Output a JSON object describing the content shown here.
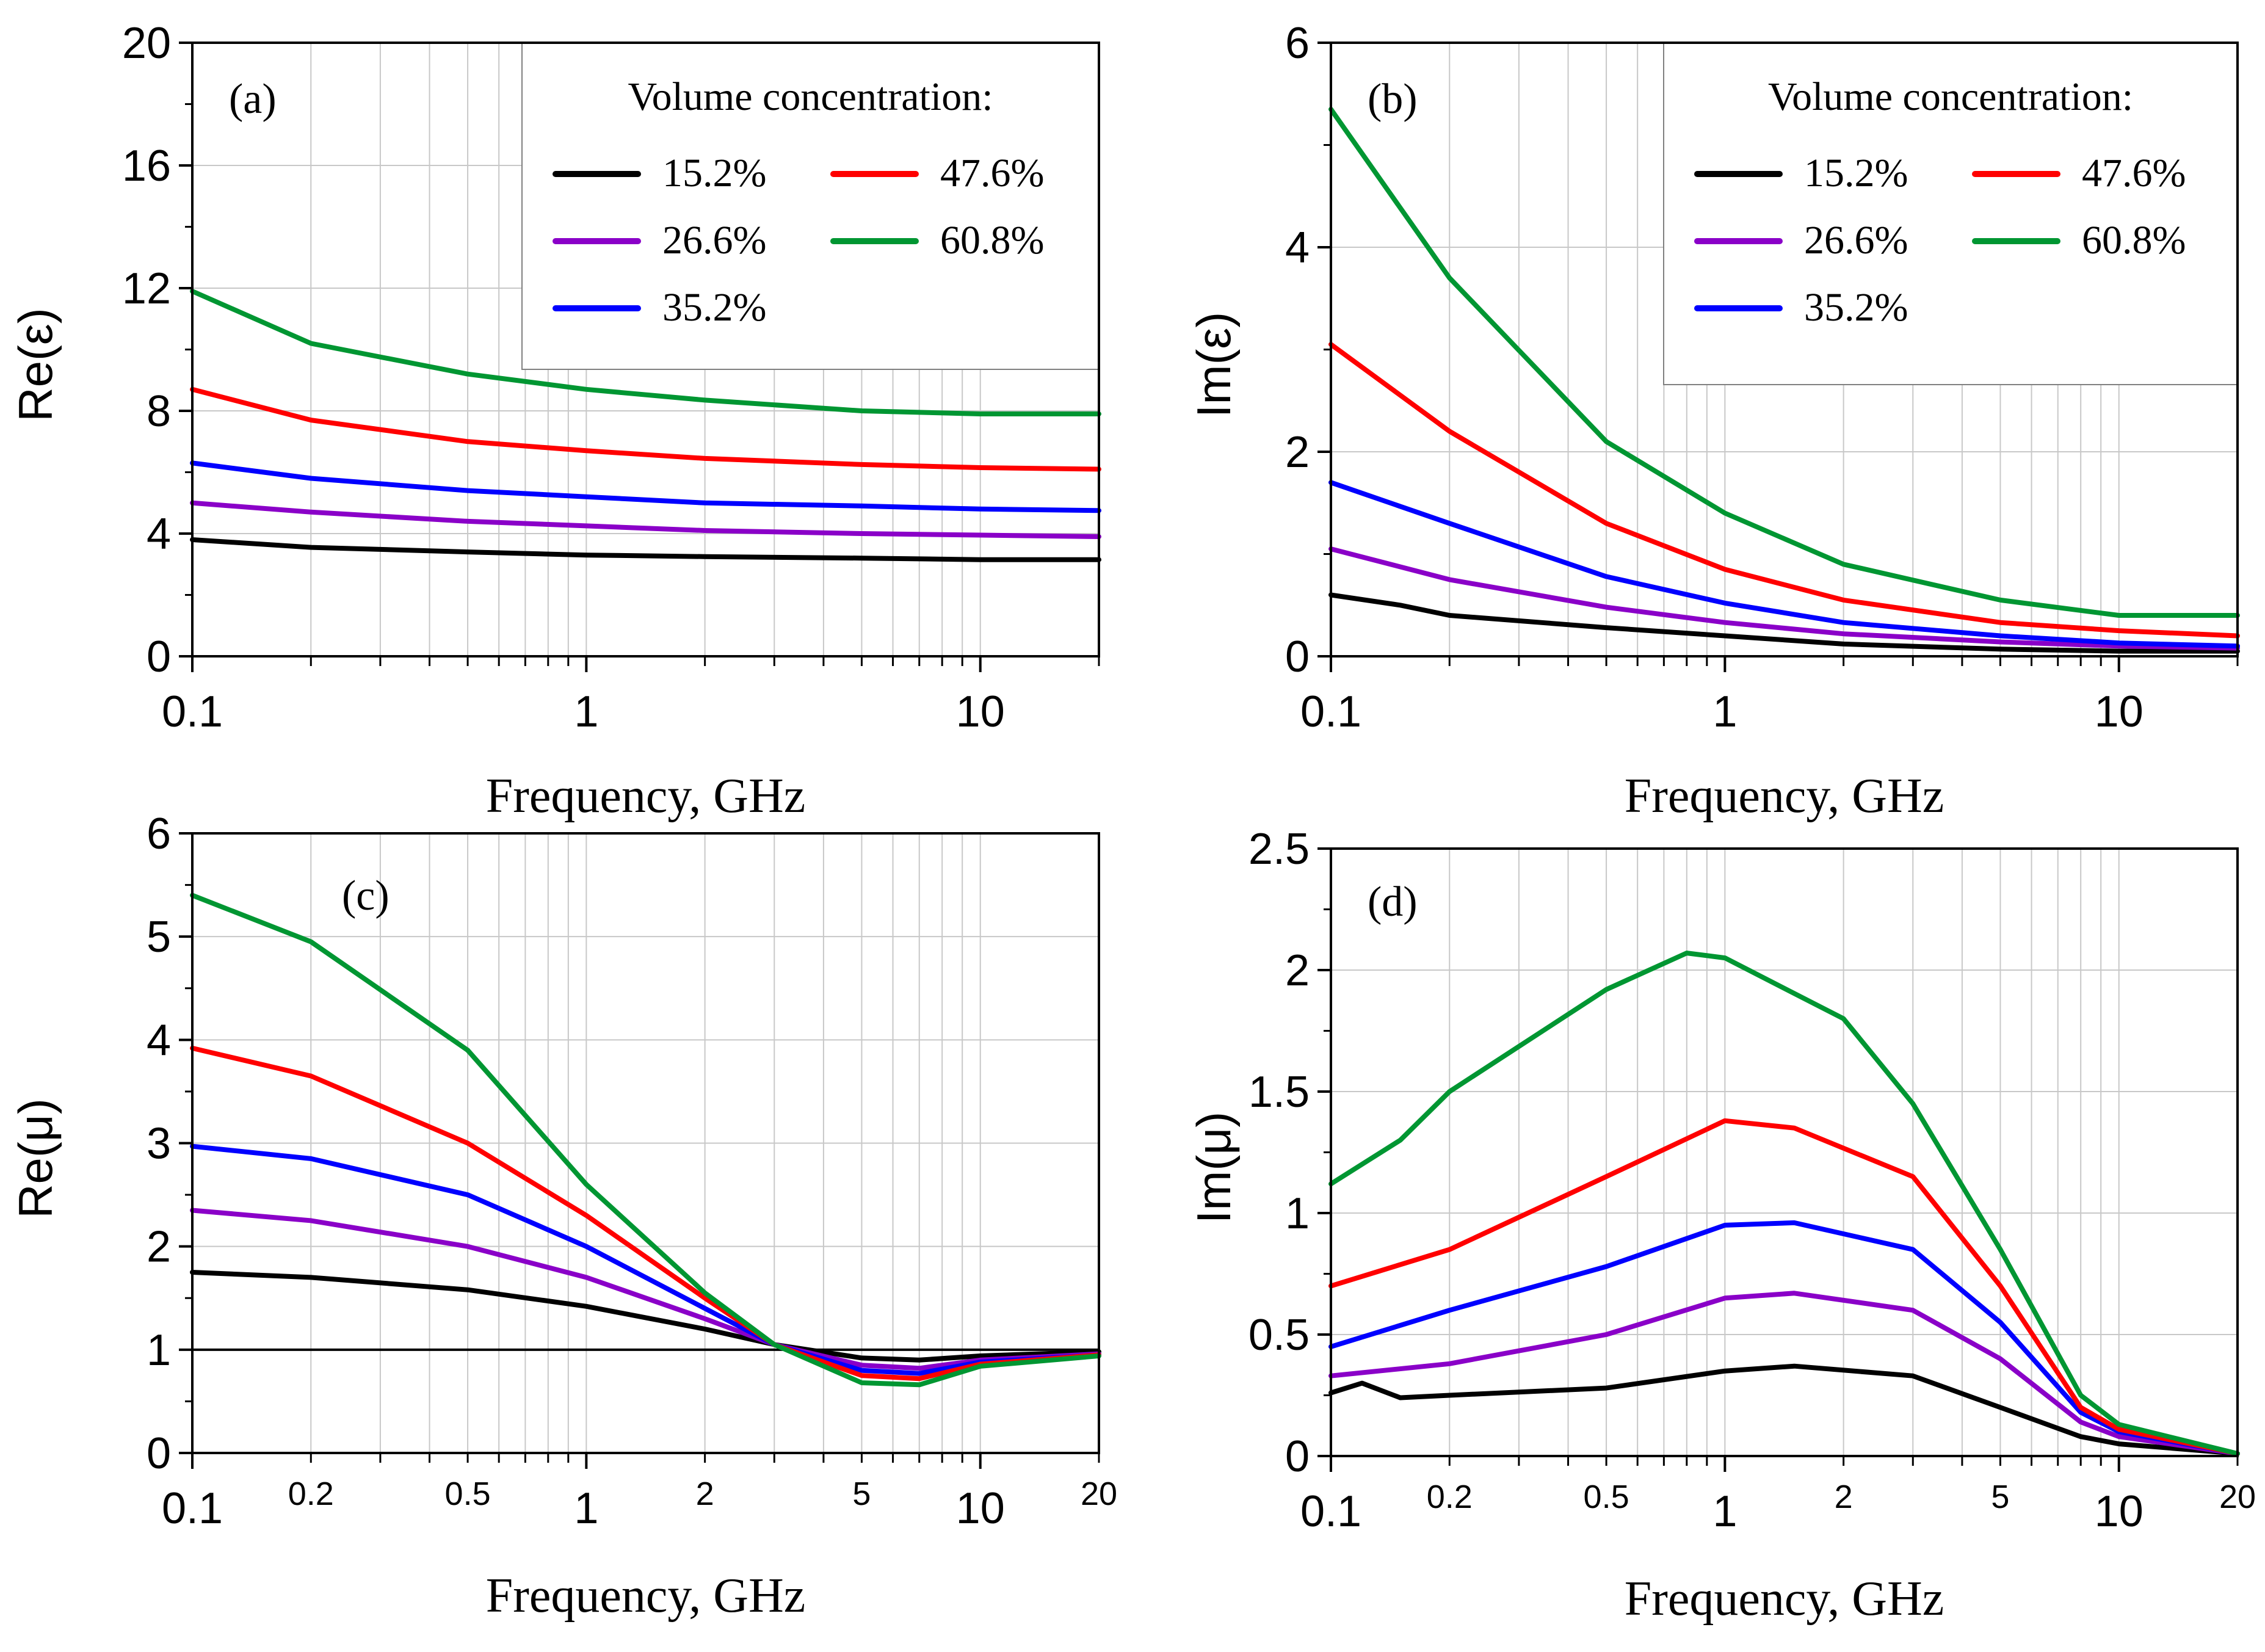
{
  "colors": {
    "15.2%": "#000000",
    "26.6%": "#8a00c8",
    "35.2%": "#0000ff",
    "47.6%": "#ff0000",
    "60.8%": "#009632"
  },
  "legend": {
    "title": "Volume concentration:",
    "entries": [
      "15.2%",
      "47.6%",
      "26.6%",
      "60.8%",
      "35.2%"
    ]
  },
  "chart_data": [
    {
      "id": "a",
      "type": "line",
      "panel_label": "(a)",
      "ylabel": "Re(ε)",
      "xlabel": "Frequency, GHz",
      "xscale": "log",
      "xlim": [
        0.1,
        20
      ],
      "ylim": [
        0,
        20
      ],
      "yticks": [
        "0",
        "4",
        "8",
        "12",
        "16",
        "20"
      ],
      "yticks_values": [
        0,
        4,
        8,
        12,
        16,
        20
      ],
      "xticks": [
        "0.1",
        "1",
        "10"
      ],
      "xticks_values": [
        0.1,
        1,
        10
      ],
      "legend_position": "top-right",
      "series": [
        {
          "name": "15.2%",
          "x": [
            0.1,
            0.2,
            0.5,
            1,
            2,
            5,
            10,
            20
          ],
          "y": [
            3.8,
            3.55,
            3.4,
            3.3,
            3.25,
            3.2,
            3.15,
            3.15
          ]
        },
        {
          "name": "26.6%",
          "x": [
            0.1,
            0.2,
            0.5,
            1,
            2,
            5,
            10,
            20
          ],
          "y": [
            5.0,
            4.7,
            4.4,
            4.25,
            4.1,
            4.0,
            3.95,
            3.9
          ]
        },
        {
          "name": "35.2%",
          "x": [
            0.1,
            0.2,
            0.5,
            1,
            2,
            5,
            10,
            20
          ],
          "y": [
            6.3,
            5.8,
            5.4,
            5.2,
            5.0,
            4.9,
            4.8,
            4.75
          ]
        },
        {
          "name": "47.6%",
          "x": [
            0.1,
            0.2,
            0.5,
            1,
            2,
            5,
            10,
            20
          ],
          "y": [
            8.7,
            7.7,
            7.0,
            6.7,
            6.45,
            6.25,
            6.15,
            6.1
          ]
        },
        {
          "name": "60.8%",
          "x": [
            0.1,
            0.2,
            0.5,
            1,
            2,
            5,
            10,
            20
          ],
          "y": [
            11.9,
            10.2,
            9.2,
            8.7,
            8.35,
            8.0,
            7.9,
            7.9
          ]
        }
      ]
    },
    {
      "id": "b",
      "type": "line",
      "panel_label": "(b)",
      "ylabel": "Im(ε)",
      "xlabel": "Frequency, GHz",
      "xscale": "log",
      "xlim": [
        0.1,
        20
      ],
      "ylim": [
        0,
        6
      ],
      "yticks": [
        "0",
        "2",
        "4",
        "6"
      ],
      "yticks_values": [
        0,
        2,
        4,
        6
      ],
      "xticks": [
        "0.1",
        "1",
        "10"
      ],
      "xticks_values": [
        0.1,
        1,
        10
      ],
      "legend_position": "top-right",
      "series": [
        {
          "name": "15.2%",
          "x": [
            0.1,
            0.15,
            0.2,
            0.5,
            1,
            2,
            5,
            10,
            20
          ],
          "y": [
            0.6,
            0.5,
            0.4,
            0.28,
            0.2,
            0.12,
            0.07,
            0.05,
            0.05
          ]
        },
        {
          "name": "26.6%",
          "x": [
            0.1,
            0.2,
            0.5,
            1,
            2,
            5,
            10,
            20
          ],
          "y": [
            1.05,
            0.75,
            0.48,
            0.33,
            0.22,
            0.14,
            0.1,
            0.08
          ]
        },
        {
          "name": "35.2%",
          "x": [
            0.1,
            0.2,
            0.5,
            1,
            2,
            5,
            10,
            20
          ],
          "y": [
            1.7,
            1.3,
            0.78,
            0.52,
            0.33,
            0.2,
            0.13,
            0.1
          ]
        },
        {
          "name": "47.6%",
          "x": [
            0.1,
            0.2,
            0.5,
            1,
            2,
            5,
            10,
            20
          ],
          "y": [
            3.05,
            2.2,
            1.3,
            0.85,
            0.55,
            0.33,
            0.25,
            0.2
          ]
        },
        {
          "name": "60.8%",
          "x": [
            0.1,
            0.2,
            0.5,
            1,
            2,
            5,
            10,
            20
          ],
          "y": [
            5.35,
            3.7,
            2.1,
            1.4,
            0.9,
            0.55,
            0.4,
            0.4
          ]
        }
      ]
    },
    {
      "id": "c",
      "type": "line",
      "panel_label": "(c)",
      "ylabel": "Re(μ)",
      "xlabel": "Frequency, GHz",
      "xscale": "log",
      "xlim": [
        0.1,
        20
      ],
      "ylim": [
        0,
        6
      ],
      "yticks": [
        "0",
        "1",
        "2",
        "3",
        "4",
        "5",
        "6"
      ],
      "yticks_values": [
        0,
        1,
        2,
        3,
        4,
        5,
        6
      ],
      "xticks": [
        "0.1",
        "0.2",
        "0.5",
        "1",
        "2",
        "5",
        "10",
        "20"
      ],
      "xticks_values": [
        0.1,
        0.2,
        0.5,
        1,
        2,
        5,
        10,
        20
      ],
      "reference_line_y": 1,
      "series": [
        {
          "name": "15.2%",
          "x": [
            0.1,
            0.2,
            0.5,
            1,
            2,
            3,
            5,
            7,
            10,
            20
          ],
          "y": [
            1.75,
            1.7,
            1.58,
            1.42,
            1.2,
            1.05,
            0.92,
            0.9,
            0.94,
            0.98
          ]
        },
        {
          "name": "26.6%",
          "x": [
            0.1,
            0.2,
            0.5,
            1,
            2,
            3,
            5,
            7,
            10,
            20
          ],
          "y": [
            2.35,
            2.25,
            2.0,
            1.7,
            1.3,
            1.05,
            0.85,
            0.82,
            0.9,
            0.96
          ]
        },
        {
          "name": "35.2%",
          "x": [
            0.1,
            0.2,
            0.5,
            1,
            2,
            3,
            5,
            7,
            10,
            20
          ],
          "y": [
            2.97,
            2.85,
            2.5,
            2.0,
            1.4,
            1.05,
            0.8,
            0.77,
            0.88,
            0.95
          ]
        },
        {
          "name": "47.6%",
          "x": [
            0.1,
            0.2,
            0.5,
            1,
            2,
            3,
            5,
            7,
            10,
            20
          ],
          "y": [
            3.92,
            3.65,
            3.0,
            2.3,
            1.5,
            1.05,
            0.75,
            0.72,
            0.86,
            0.95
          ]
        },
        {
          "name": "60.8%",
          "x": [
            0.1,
            0.2,
            0.5,
            1,
            2,
            3,
            5,
            7,
            10,
            20
          ],
          "y": [
            5.4,
            4.95,
            3.9,
            2.6,
            1.55,
            1.05,
            0.68,
            0.66,
            0.84,
            0.94
          ]
        }
      ]
    },
    {
      "id": "d",
      "type": "line",
      "panel_label": "(d)",
      "ylabel": "Im(μ)",
      "xlabel": "Frequency, GHz",
      "xscale": "log",
      "xlim": [
        0.1,
        20
      ],
      "ylim": [
        0,
        2.5
      ],
      "yticks": [
        "0",
        "0.5",
        "1",
        "1.5",
        "2",
        "2.5"
      ],
      "yticks_values": [
        0,
        0.5,
        1,
        1.5,
        2,
        2.5
      ],
      "xticks": [
        "0.1",
        "0.2",
        "0.5",
        "1",
        "2",
        "5",
        "10",
        "20"
      ],
      "xticks_values": [
        0.1,
        0.2,
        0.5,
        1,
        2,
        5,
        10,
        20
      ],
      "series": [
        {
          "name": "15.2%",
          "x": [
            0.1,
            0.12,
            0.15,
            0.2,
            0.5,
            1,
            1.5,
            3,
            5,
            8,
            10,
            20
          ],
          "y": [
            0.26,
            0.3,
            0.24,
            0.25,
            0.28,
            0.35,
            0.37,
            0.33,
            0.2,
            0.08,
            0.05,
            0.01
          ]
        },
        {
          "name": "26.6%",
          "x": [
            0.1,
            0.2,
            0.5,
            1,
            1.5,
            3,
            5,
            8,
            10,
            20
          ],
          "y": [
            0.33,
            0.38,
            0.5,
            0.65,
            0.67,
            0.6,
            0.4,
            0.14,
            0.08,
            0.01
          ]
        },
        {
          "name": "35.2%",
          "x": [
            0.1,
            0.2,
            0.5,
            1,
            1.5,
            3,
            5,
            8,
            10,
            20
          ],
          "y": [
            0.45,
            0.6,
            0.78,
            0.95,
            0.96,
            0.85,
            0.55,
            0.18,
            0.1,
            0.01
          ]
        },
        {
          "name": "47.6%",
          "x": [
            0.1,
            0.2,
            0.5,
            1,
            1.5,
            3,
            5,
            8,
            10,
            20
          ],
          "y": [
            0.7,
            0.85,
            1.15,
            1.38,
            1.35,
            1.15,
            0.7,
            0.2,
            0.11,
            0.01
          ]
        },
        {
          "name": "60.8%",
          "x": [
            0.1,
            0.15,
            0.2,
            0.5,
            0.8,
            1,
            2,
            3,
            5,
            8,
            10,
            20
          ],
          "y": [
            1.12,
            1.3,
            1.5,
            1.92,
            2.07,
            2.05,
            1.8,
            1.45,
            0.85,
            0.25,
            0.13,
            0.01
          ]
        }
      ]
    }
  ]
}
